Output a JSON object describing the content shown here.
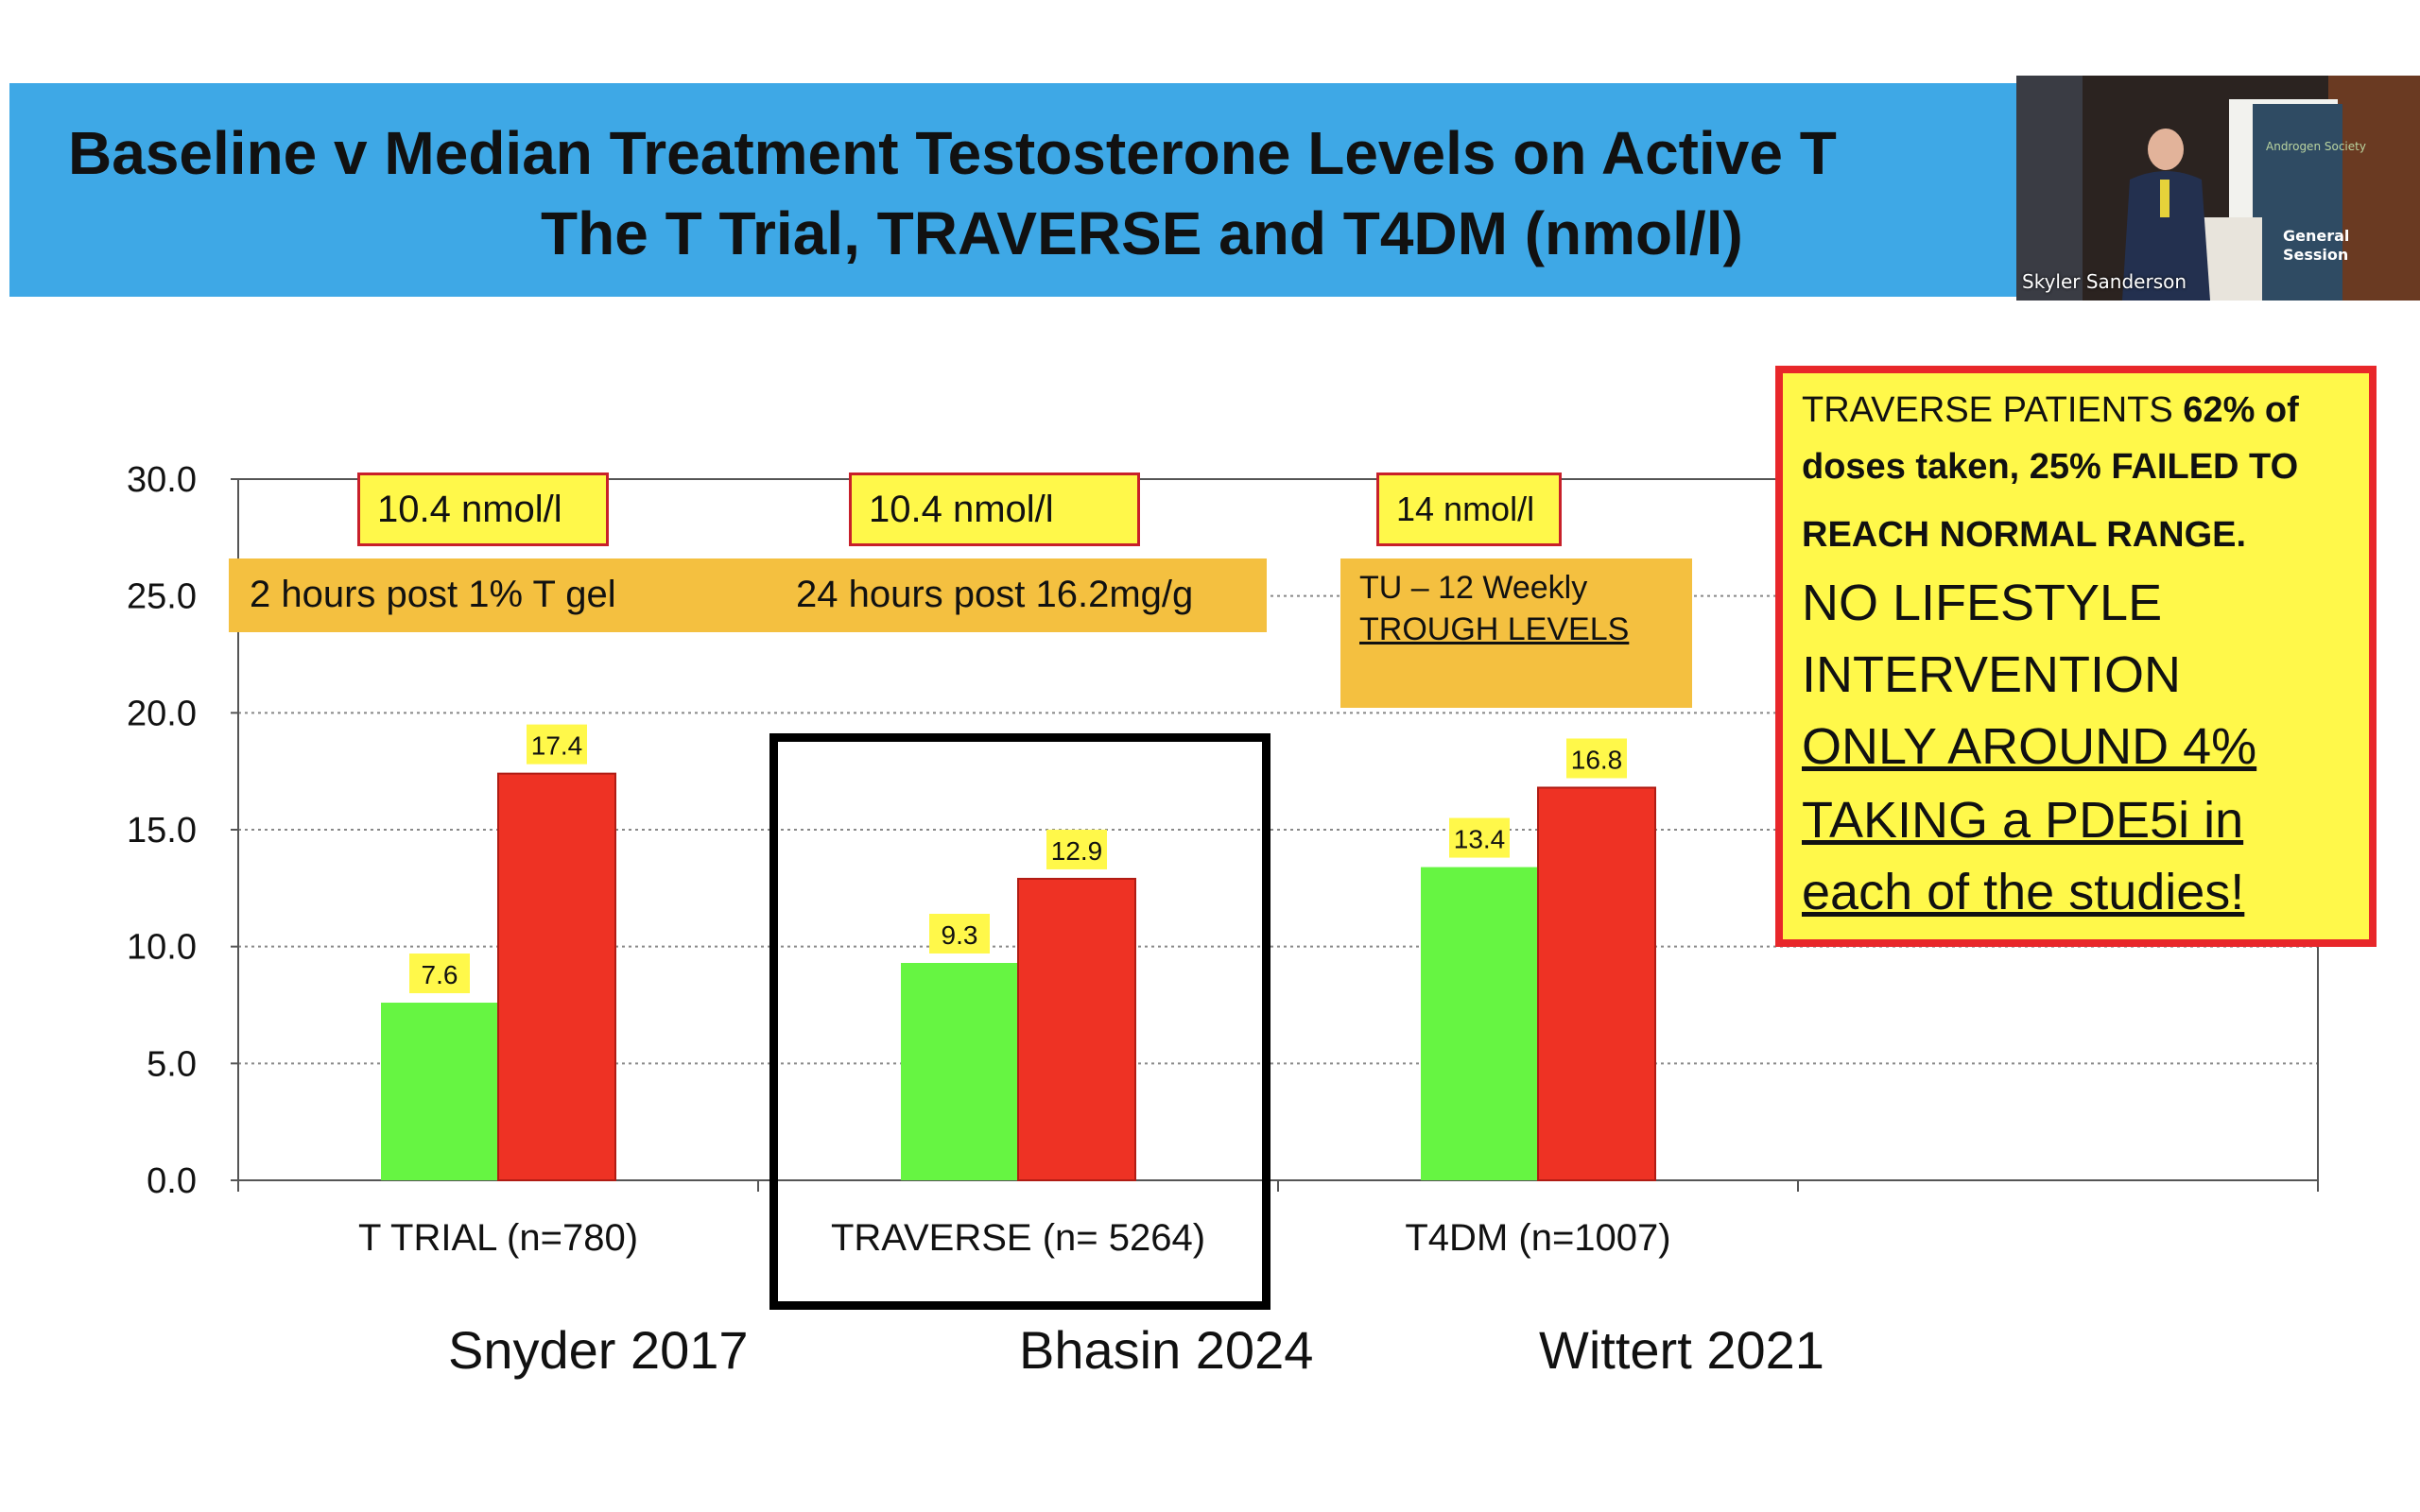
{
  "slide": {
    "title_line1": "Baseline v Median Treatment  Testosterone Levels on Active T",
    "title_line2": "The T Trial, TRAVERSE and T4DM (nmol/l)"
  },
  "video": {
    "speaker_name": "Skyler Sanderson",
    "sign_line1": "General",
    "sign_line2": "Session",
    "sign_logo": "Androgen Society"
  },
  "callouts": {
    "ttrial_level": "10.4 nmol/l",
    "traverse_level": "10.4 nmol/l",
    "t4dm_level": "14 nmol/l",
    "ttrial_timing": "2 hours post 1% T gel",
    "traverse_timing": "24 hours post 16.2mg/g",
    "t4dm_timing_line1": "TU – 12 Weekly",
    "t4dm_timing_line2": "TROUGH LEVELS"
  },
  "note_box": {
    "line1_a": "TRAVERSE PATIENTS ",
    "line1_b": "62% of",
    "line2": "doses taken, 25% FAILED TO",
    "line3": "REACH NORMAL RANGE.",
    "line4": "NO LIFESTYLE",
    "line5": "INTERVENTION",
    "line6": "ONLY AROUND 4%",
    "line7": "TAKING a PDE5i in",
    "line8": "each of the studies!"
  },
  "citations": {
    "c1": "Snyder 2017",
    "c2": "Bhasin 2024",
    "c3": "Wittert 2021"
  },
  "colors": {
    "baseline": "#66f542",
    "treatment": "#ee3224",
    "banner": "#3ea8e6",
    "label_bg": "#fff84a"
  },
  "chart_data": {
    "type": "bar",
    "title": "Baseline v Median Treatment  Testosterone Levels on Active T",
    "xlabel": "",
    "ylabel": "",
    "ylim": [
      0,
      30
    ],
    "yticks": [
      "0.0",
      "5.0",
      "10.0",
      "15.0",
      "20.0",
      "25.0",
      "30.0"
    ],
    "ytick_values": [
      0,
      5,
      10,
      15,
      20,
      25,
      30
    ],
    "categories": [
      "T TRIAL (n=780)",
      "TRAVERSE (n= 5264)",
      "T4DM (n=1007)",
      ""
    ],
    "series": [
      {
        "name": "Baseline",
        "values": [
          7.6,
          9.3,
          13.4,
          null
        ],
        "labels": [
          "7.6",
          "9.3",
          "13.4",
          ""
        ]
      },
      {
        "name": "Median Treatment",
        "values": [
          17.4,
          12.9,
          16.8,
          null
        ],
        "labels": [
          "17.4",
          "12.9",
          "16.8",
          ""
        ]
      }
    ],
    "grid": true
  }
}
